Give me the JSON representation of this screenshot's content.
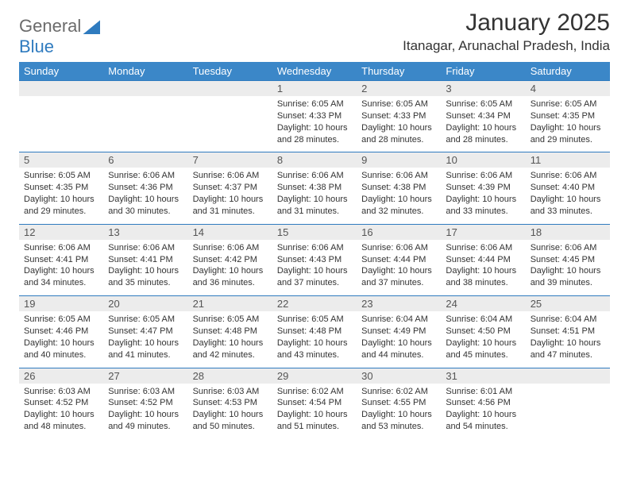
{
  "brand": {
    "part1": "General",
    "part2": "Blue"
  },
  "title": "January 2025",
  "location": "Itanagar, Arunachal Pradesh, India",
  "style": {
    "header_bg": "#3b87c8",
    "header_text": "#ffffff",
    "daynum_bg": "#ececec",
    "daynum_text": "#555555",
    "row_border": "#2f7bbf",
    "title_color": "#333333",
    "body_text": "#333333",
    "month_fontsize": 30,
    "location_fontsize": 17,
    "dayhdr_fontsize": 13,
    "info_fontsize": 11
  },
  "day_headers": [
    "Sunday",
    "Monday",
    "Tuesday",
    "Wednesday",
    "Thursday",
    "Friday",
    "Saturday"
  ],
  "weeks": [
    [
      {
        "n": "",
        "sunrise": "",
        "sunset": "",
        "daylight": ""
      },
      {
        "n": "",
        "sunrise": "",
        "sunset": "",
        "daylight": ""
      },
      {
        "n": "",
        "sunrise": "",
        "sunset": "",
        "daylight": ""
      },
      {
        "n": "1",
        "sunrise": "Sunrise: 6:05 AM",
        "sunset": "Sunset: 4:33 PM",
        "daylight": "Daylight: 10 hours and 28 minutes."
      },
      {
        "n": "2",
        "sunrise": "Sunrise: 6:05 AM",
        "sunset": "Sunset: 4:33 PM",
        "daylight": "Daylight: 10 hours and 28 minutes."
      },
      {
        "n": "3",
        "sunrise": "Sunrise: 6:05 AM",
        "sunset": "Sunset: 4:34 PM",
        "daylight": "Daylight: 10 hours and 28 minutes."
      },
      {
        "n": "4",
        "sunrise": "Sunrise: 6:05 AM",
        "sunset": "Sunset: 4:35 PM",
        "daylight": "Daylight: 10 hours and 29 minutes."
      }
    ],
    [
      {
        "n": "5",
        "sunrise": "Sunrise: 6:05 AM",
        "sunset": "Sunset: 4:35 PM",
        "daylight": "Daylight: 10 hours and 29 minutes."
      },
      {
        "n": "6",
        "sunrise": "Sunrise: 6:06 AM",
        "sunset": "Sunset: 4:36 PM",
        "daylight": "Daylight: 10 hours and 30 minutes."
      },
      {
        "n": "7",
        "sunrise": "Sunrise: 6:06 AM",
        "sunset": "Sunset: 4:37 PM",
        "daylight": "Daylight: 10 hours and 31 minutes."
      },
      {
        "n": "8",
        "sunrise": "Sunrise: 6:06 AM",
        "sunset": "Sunset: 4:38 PM",
        "daylight": "Daylight: 10 hours and 31 minutes."
      },
      {
        "n": "9",
        "sunrise": "Sunrise: 6:06 AM",
        "sunset": "Sunset: 4:38 PM",
        "daylight": "Daylight: 10 hours and 32 minutes."
      },
      {
        "n": "10",
        "sunrise": "Sunrise: 6:06 AM",
        "sunset": "Sunset: 4:39 PM",
        "daylight": "Daylight: 10 hours and 33 minutes."
      },
      {
        "n": "11",
        "sunrise": "Sunrise: 6:06 AM",
        "sunset": "Sunset: 4:40 PM",
        "daylight": "Daylight: 10 hours and 33 minutes."
      }
    ],
    [
      {
        "n": "12",
        "sunrise": "Sunrise: 6:06 AM",
        "sunset": "Sunset: 4:41 PM",
        "daylight": "Daylight: 10 hours and 34 minutes."
      },
      {
        "n": "13",
        "sunrise": "Sunrise: 6:06 AM",
        "sunset": "Sunset: 4:41 PM",
        "daylight": "Daylight: 10 hours and 35 minutes."
      },
      {
        "n": "14",
        "sunrise": "Sunrise: 6:06 AM",
        "sunset": "Sunset: 4:42 PM",
        "daylight": "Daylight: 10 hours and 36 minutes."
      },
      {
        "n": "15",
        "sunrise": "Sunrise: 6:06 AM",
        "sunset": "Sunset: 4:43 PM",
        "daylight": "Daylight: 10 hours and 37 minutes."
      },
      {
        "n": "16",
        "sunrise": "Sunrise: 6:06 AM",
        "sunset": "Sunset: 4:44 PM",
        "daylight": "Daylight: 10 hours and 37 minutes."
      },
      {
        "n": "17",
        "sunrise": "Sunrise: 6:06 AM",
        "sunset": "Sunset: 4:44 PM",
        "daylight": "Daylight: 10 hours and 38 minutes."
      },
      {
        "n": "18",
        "sunrise": "Sunrise: 6:06 AM",
        "sunset": "Sunset: 4:45 PM",
        "daylight": "Daylight: 10 hours and 39 minutes."
      }
    ],
    [
      {
        "n": "19",
        "sunrise": "Sunrise: 6:05 AM",
        "sunset": "Sunset: 4:46 PM",
        "daylight": "Daylight: 10 hours and 40 minutes."
      },
      {
        "n": "20",
        "sunrise": "Sunrise: 6:05 AM",
        "sunset": "Sunset: 4:47 PM",
        "daylight": "Daylight: 10 hours and 41 minutes."
      },
      {
        "n": "21",
        "sunrise": "Sunrise: 6:05 AM",
        "sunset": "Sunset: 4:48 PM",
        "daylight": "Daylight: 10 hours and 42 minutes."
      },
      {
        "n": "22",
        "sunrise": "Sunrise: 6:05 AM",
        "sunset": "Sunset: 4:48 PM",
        "daylight": "Daylight: 10 hours and 43 minutes."
      },
      {
        "n": "23",
        "sunrise": "Sunrise: 6:04 AM",
        "sunset": "Sunset: 4:49 PM",
        "daylight": "Daylight: 10 hours and 44 minutes."
      },
      {
        "n": "24",
        "sunrise": "Sunrise: 6:04 AM",
        "sunset": "Sunset: 4:50 PM",
        "daylight": "Daylight: 10 hours and 45 minutes."
      },
      {
        "n": "25",
        "sunrise": "Sunrise: 6:04 AM",
        "sunset": "Sunset: 4:51 PM",
        "daylight": "Daylight: 10 hours and 47 minutes."
      }
    ],
    [
      {
        "n": "26",
        "sunrise": "Sunrise: 6:03 AM",
        "sunset": "Sunset: 4:52 PM",
        "daylight": "Daylight: 10 hours and 48 minutes."
      },
      {
        "n": "27",
        "sunrise": "Sunrise: 6:03 AM",
        "sunset": "Sunset: 4:52 PM",
        "daylight": "Daylight: 10 hours and 49 minutes."
      },
      {
        "n": "28",
        "sunrise": "Sunrise: 6:03 AM",
        "sunset": "Sunset: 4:53 PM",
        "daylight": "Daylight: 10 hours and 50 minutes."
      },
      {
        "n": "29",
        "sunrise": "Sunrise: 6:02 AM",
        "sunset": "Sunset: 4:54 PM",
        "daylight": "Daylight: 10 hours and 51 minutes."
      },
      {
        "n": "30",
        "sunrise": "Sunrise: 6:02 AM",
        "sunset": "Sunset: 4:55 PM",
        "daylight": "Daylight: 10 hours and 53 minutes."
      },
      {
        "n": "31",
        "sunrise": "Sunrise: 6:01 AM",
        "sunset": "Sunset: 4:56 PM",
        "daylight": "Daylight: 10 hours and 54 minutes."
      },
      {
        "n": "",
        "sunrise": "",
        "sunset": "",
        "daylight": ""
      }
    ]
  ]
}
